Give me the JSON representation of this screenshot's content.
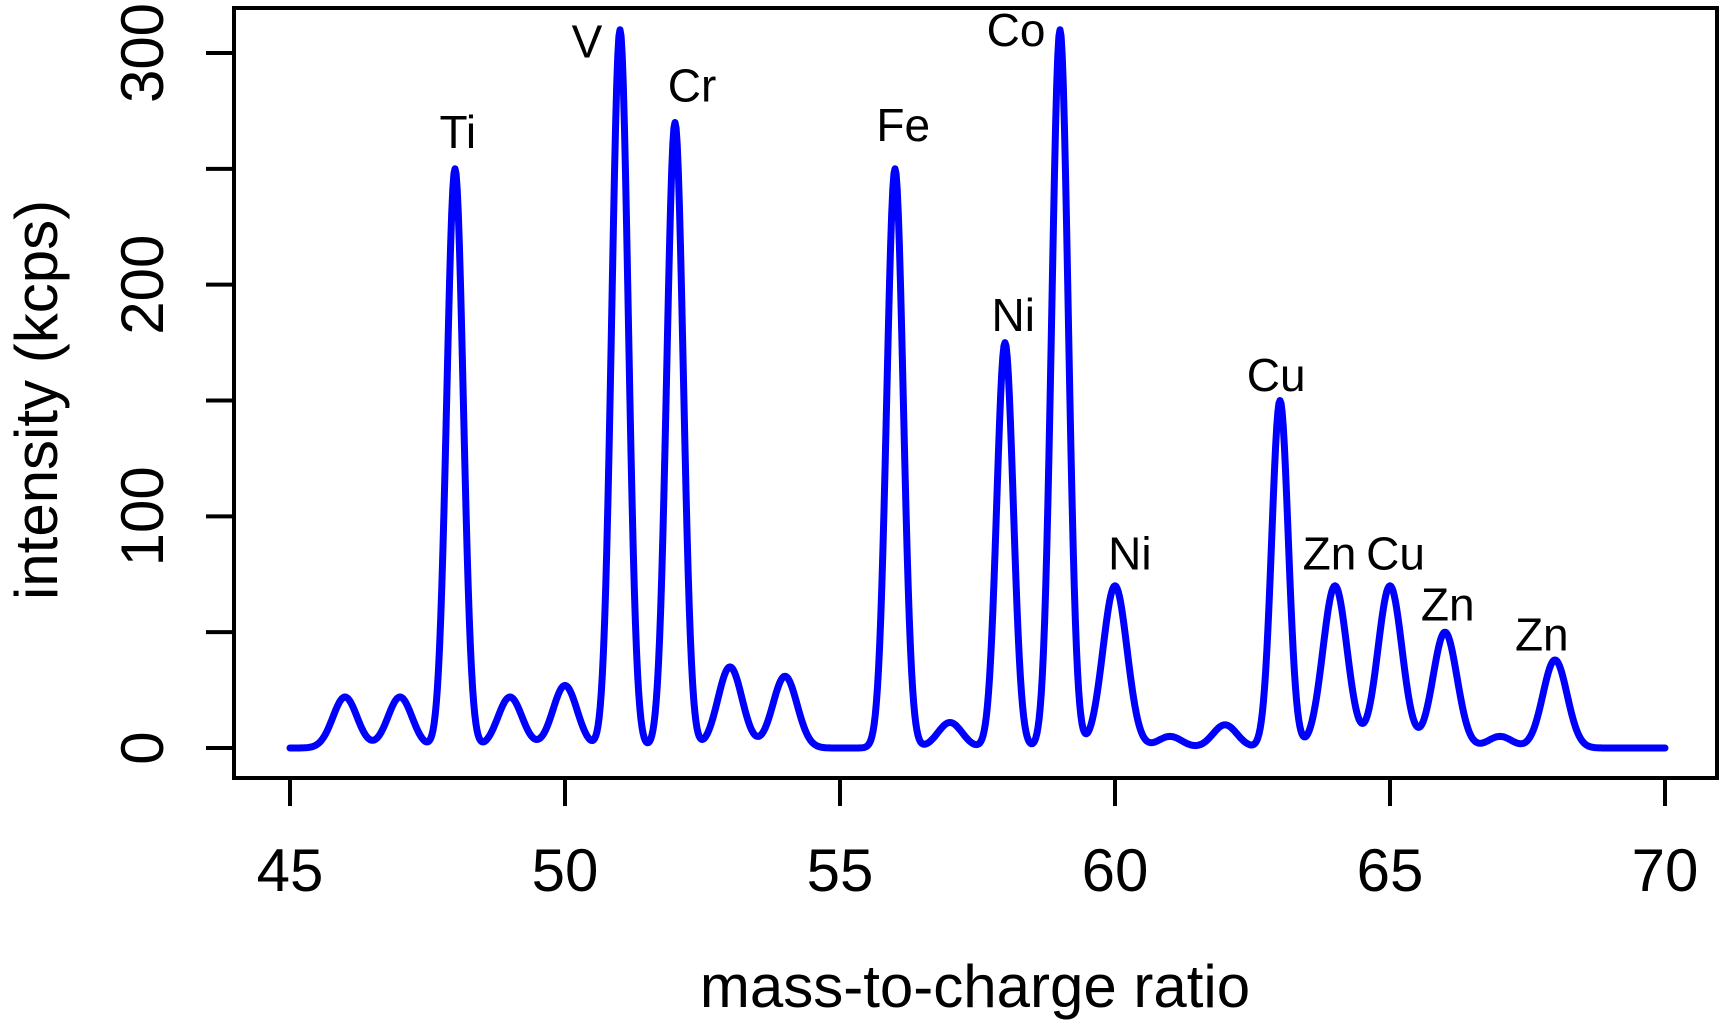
{
  "figure": {
    "background_color": "#ffffff",
    "axis_color": "#000000",
    "series_color": "#0000ff"
  },
  "chart_data": {
    "type": "line",
    "title": "",
    "xlabel": "mass-to-charge ratio",
    "ylabel": "intensity (kcps)",
    "xlim": [
      44,
      71
    ],
    "ylim": [
      -12,
      322
    ],
    "grid": false,
    "legend": "none",
    "x_ticks": [
      45,
      50,
      55,
      60,
      65,
      70
    ],
    "y_ticks_major": [
      0,
      100,
      200,
      300
    ],
    "y_ticks_minor": [
      50,
      150,
      250
    ],
    "peak_shape": {
      "kind": "gaussian",
      "sigma_tall": 0.15,
      "sigma_small": 0.22,
      "tall_threshold": 100
    },
    "peaks": [
      {
        "mz": 46,
        "intensity": 22
      },
      {
        "mz": 47,
        "intensity": 22
      },
      {
        "mz": 48,
        "intensity": 250,
        "label": "Ti",
        "label_x": 48.05,
        "label_y": 259
      },
      {
        "mz": 49,
        "intensity": 22
      },
      {
        "mz": 50,
        "intensity": 27
      },
      {
        "mz": 51,
        "intensity": 310,
        "label": "V",
        "label_x": 50.4,
        "label_y": 298
      },
      {
        "mz": 52,
        "intensity": 270,
        "label": "Cr",
        "label_x": 52.31,
        "label_y": 279
      },
      {
        "mz": 53,
        "intensity": 35
      },
      {
        "mz": 54,
        "intensity": 31
      },
      {
        "mz": 56,
        "intensity": 250,
        "label": "Fe",
        "label_x": 56.15,
        "label_y": 262
      },
      {
        "mz": 57,
        "intensity": 11
      },
      {
        "mz": 58,
        "intensity": 175,
        "label": "Ni",
        "label_x": 58.15,
        "label_y": 180
      },
      {
        "mz": 59,
        "intensity": 310,
        "label": "Co",
        "label_x": 58.2,
        "label_y": 303
      },
      {
        "mz": 60,
        "intensity": 70,
        "label": "Ni",
        "label_x": 60.27,
        "label_y": 77
      },
      {
        "mz": 61,
        "intensity": 5
      },
      {
        "mz": 62,
        "intensity": 10
      },
      {
        "mz": 63,
        "intensity": 150,
        "label": "Cu",
        "label_x": 62.93,
        "label_y": 154
      },
      {
        "mz": 64,
        "intensity": 70,
        "label": "Zn",
        "label_x": 63.9,
        "label_y": 77
      },
      {
        "mz": 65,
        "intensity": 70,
        "label": "Cu",
        "label_x": 65.1,
        "label_y": 77
      },
      {
        "mz": 66,
        "intensity": 50,
        "label": "Zn",
        "label_x": 66.05,
        "label_y": 55
      },
      {
        "mz": 67,
        "intensity": 5
      },
      {
        "mz": 68,
        "intensity": 38,
        "label": "Zn",
        "label_x": 67.76,
        "label_y": 42
      }
    ]
  }
}
